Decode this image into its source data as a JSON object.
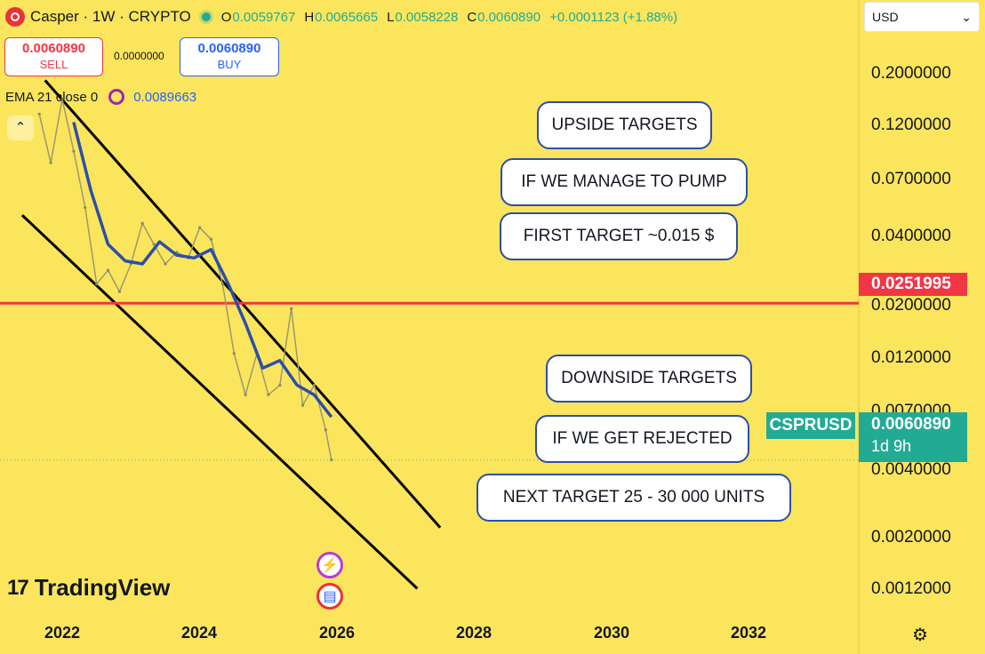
{
  "header": {
    "title": "Casper · 1W · CRYPTO",
    "ohlc": [
      {
        "k": "O",
        "v": "0.0059767"
      },
      {
        "k": "H",
        "v": "0.0065665"
      },
      {
        "k": "L",
        "v": "0.0058228"
      },
      {
        "k": "C",
        "v": "0.0060890"
      }
    ],
    "change": "+0.0001123 (+1.88%)"
  },
  "trade": {
    "sell_price": "0.0060890",
    "sell_label": "SELL",
    "spread": "0.0000000",
    "buy_price": "0.0060890",
    "buy_label": "BUY"
  },
  "indicator": {
    "label": "EMA 21 close 0",
    "value": "0.0089663"
  },
  "collapse_glyph": "⌃",
  "currency": {
    "selected": "USD",
    "chevron": "⌄"
  },
  "price_axis": [
    "0.2000000",
    "0.1200000",
    "0.0700000",
    "0.0400000",
    "0.0200000",
    "0.0120000",
    "0.0070000",
    "0.0040000",
    "0.0020000",
    "0.0012000"
  ],
  "time_axis": [
    "2022",
    "2024",
    "2026",
    "2028",
    "2030",
    "2032"
  ],
  "resistance": {
    "value": "0.0251995",
    "color": "#f23645"
  },
  "last_price": {
    "symbol": "CSPRUSD",
    "value": "0.0060890",
    "countdown": "1d 9h",
    "color": "#22ab94"
  },
  "annotations": {
    "upside": "UPSIDE TARGETS",
    "pump": "IF WE MANAGE TO PUMP",
    "first_target": "FIRST TARGET ~0.015 $",
    "downside": "DOWNSIDE TARGETS",
    "rejected": "IF WE GET REJECTED",
    "next_target": "NEXT TARGET 25 - 30 000 UNITS"
  },
  "branding": {
    "mark": "17",
    "name": "TradingView"
  },
  "events": {
    "ev1_glyph": "⚡",
    "ev2_glyph": "▤"
  },
  "settings_glyph": "⚙",
  "chart_data": {
    "type": "line",
    "title": "Casper · 1W · CRYPTO",
    "y_scale": "log",
    "ylim": [
      0.001,
      0.28
    ],
    "xlim": [
      "2021-06",
      "2034-06"
    ],
    "price_series": {
      "name": "CSPRUSD",
      "x": [
        "2021-09",
        "2021-11",
        "2022-01",
        "2022-03",
        "2022-05",
        "2022-07",
        "2022-09",
        "2022-11",
        "2023-01",
        "2023-03",
        "2023-05",
        "2023-07",
        "2023-09",
        "2023-11",
        "2024-01",
        "2024-03",
        "2024-05",
        "2024-07",
        "2024-09",
        "2024-11",
        "2025-01",
        "2025-03",
        "2025-05",
        "2025-07",
        "2025-09",
        "2025-11",
        "2025-12"
      ],
      "y": [
        0.14,
        0.09,
        0.16,
        0.1,
        0.06,
        0.03,
        0.034,
        0.028,
        0.036,
        0.052,
        0.043,
        0.036,
        0.04,
        0.038,
        0.05,
        0.045,
        0.03,
        0.016,
        0.011,
        0.016,
        0.011,
        0.012,
        0.024,
        0.01,
        0.012,
        0.008,
        0.0061
      ]
    },
    "ema_series": {
      "name": "EMA 21 close 0",
      "x": [
        "2022-03",
        "2022-06",
        "2022-09",
        "2022-12",
        "2023-03",
        "2023-06",
        "2023-09",
        "2023-12",
        "2024-03",
        "2024-06",
        "2024-09",
        "2024-12",
        "2025-03",
        "2025-06",
        "2025-09",
        "2025-12"
      ],
      "y": [
        0.13,
        0.07,
        0.043,
        0.037,
        0.036,
        0.044,
        0.039,
        0.038,
        0.041,
        0.03,
        0.021,
        0.014,
        0.015,
        0.012,
        0.011,
        0.009
      ]
    },
    "channel_upper": {
      "x": [
        "2021-10",
        "2027-07"
      ],
      "y": [
        0.19,
        0.0033
      ]
    },
    "channel_lower": {
      "x": [
        "2021-06",
        "2027-03"
      ],
      "y": [
        0.056,
        0.0019
      ]
    },
    "resistance_level": 0.0251995,
    "last_value": 0.006089,
    "grid": false
  }
}
